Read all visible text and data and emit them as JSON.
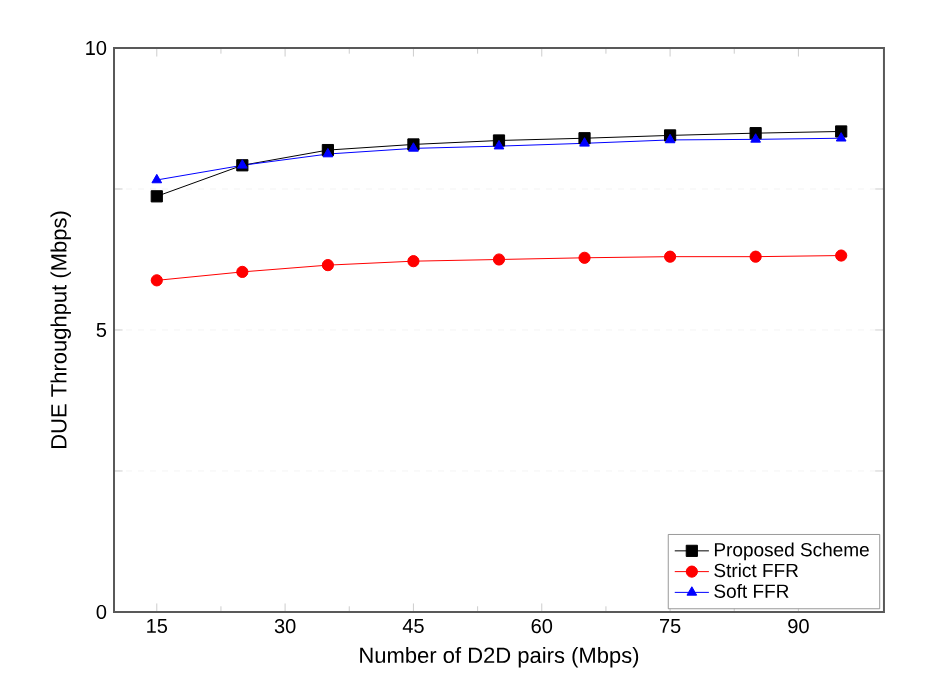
{
  "chart_data": {
    "type": "line",
    "xlabel": "Number of D2D pairs (Mbps)",
    "ylabel": "DUE Throughput (Mbps)",
    "x": [
      15,
      25,
      35,
      45,
      55,
      65,
      75,
      85,
      95
    ],
    "xlim": [
      10,
      100
    ],
    "xticks": [
      15,
      30,
      45,
      60,
      75,
      90
    ],
    "ylim": [
      0,
      10
    ],
    "yticks": [
      0,
      {
        "value": 2.5,
        "label": null
      },
      5,
      {
        "value": 7.5,
        "label": null
      },
      10
    ],
    "grid": "y",
    "legend": "bottom right",
    "series": [
      {
        "name": "Proposed Scheme",
        "color": "#000000",
        "marker": "square",
        "values": [
          7.37,
          7.92,
          8.19,
          8.29,
          8.36,
          8.4,
          8.45,
          8.49,
          8.52
        ]
      },
      {
        "name": "Strict FFR",
        "color": "#ff0000",
        "marker": "circle",
        "values": [
          5.88,
          6.03,
          6.15,
          6.22,
          6.25,
          6.28,
          6.3,
          6.3,
          6.32
        ]
      },
      {
        "name": "Soft FFR",
        "color": "#0000ff",
        "marker": "triangle",
        "values": [
          7.66,
          7.92,
          8.12,
          8.22,
          8.26,
          8.31,
          8.37,
          8.38,
          8.4
        ]
      }
    ]
  }
}
